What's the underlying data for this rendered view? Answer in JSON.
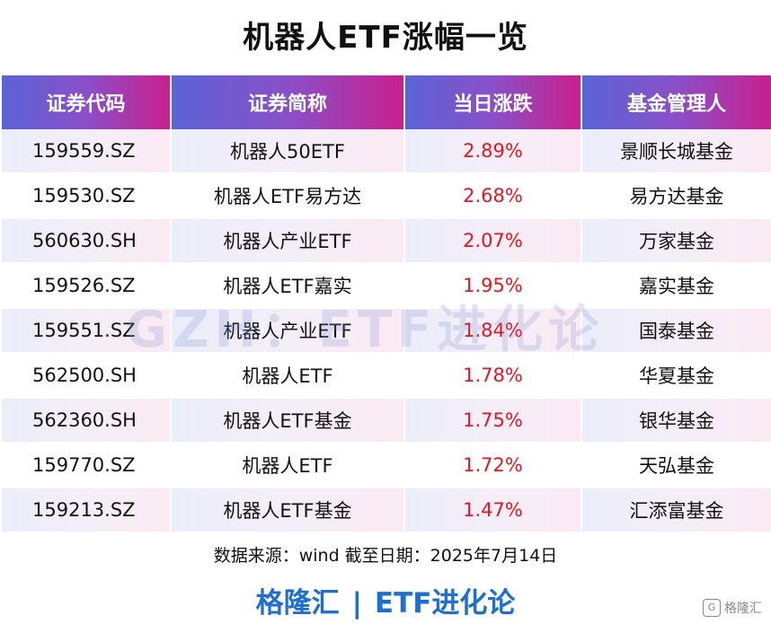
{
  "title": "机器人ETF涨幅一览",
  "table": {
    "headers": [
      "证券代码",
      "证券简称",
      "当日涨跌",
      "基金管理人"
    ],
    "rows": [
      {
        "code": "159559.SZ",
        "name": "机器人50ETF",
        "change": "2.89%",
        "manager": "景顺长城基金"
      },
      {
        "code": "159530.SZ",
        "name": "机器人ETF易方达",
        "change": "2.68%",
        "manager": "易方达基金"
      },
      {
        "code": "560630.SH",
        "name": "机器人产业ETF",
        "change": "2.07%",
        "manager": "万家基金"
      },
      {
        "code": "159526.SZ",
        "name": "机器人ETF嘉实",
        "change": "1.95%",
        "manager": "嘉实基金"
      },
      {
        "code": "159551.SZ",
        "name": "机器人产业ETF",
        "change": "1.84%",
        "manager": "国泰基金"
      },
      {
        "code": "562500.SH",
        "name": "机器人ETF",
        "change": "1.78%",
        "manager": "华夏基金"
      },
      {
        "code": "562360.SH",
        "name": "机器人ETF基金",
        "change": "1.75%",
        "manager": "银华基金"
      },
      {
        "code": "159770.SZ",
        "name": "机器人ETF",
        "change": "1.72%",
        "manager": "天弘基金"
      },
      {
        "code": "159213.SZ",
        "name": "机器人ETF基金",
        "change": "1.47%",
        "manager": "汇添富基金"
      }
    ]
  },
  "watermark": "GZH：ETF进化论",
  "source": "数据来源：wind  截至日期：2025年7月14日",
  "brand": {
    "left": "格隆汇",
    "separator": "|",
    "right": "ETF进化论"
  },
  "corner_logo": {
    "text": "格隆汇"
  },
  "colors": {
    "header_start": "#5a64d6",
    "header_end": "#c8208e",
    "positive_change": "#e8141e",
    "brand": "#1f6fd1"
  }
}
